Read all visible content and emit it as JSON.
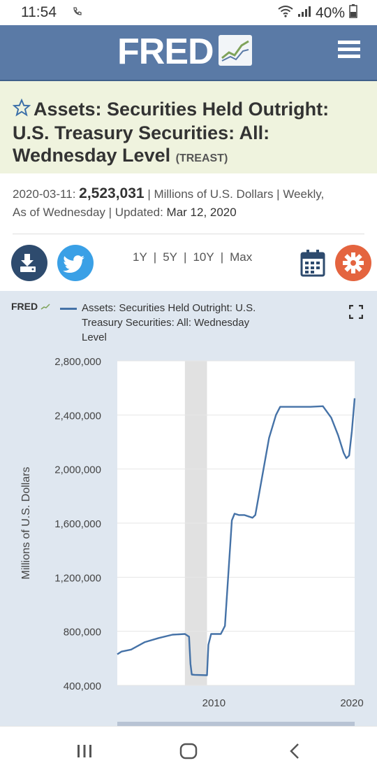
{
  "status": {
    "time": "11:54",
    "battery": "40%"
  },
  "header": {
    "logo_text": "FRED"
  },
  "series": {
    "title": "Assets: Securities Held Outright: U.S. Treasury Securities: All: Wednesday Level",
    "code": "(TREAST)",
    "date": "2020-03-11:",
    "value": "2,523,031",
    "meta_line1": "| Millions of U.S. Dollars | Weekly,",
    "meta_line2a": "As of Wednesday | Updated:",
    "updated": "Mar 12, 2020"
  },
  "ranges": [
    "1Y",
    "5Y",
    "10Y",
    "Max"
  ],
  "chart_logo": "FRED",
  "chart_data": {
    "type": "line",
    "title": "",
    "xlabel": "",
    "ylabel": "Millions of U.S. Dollars",
    "ylim": [
      400000,
      2800000
    ],
    "xlim": [
      2003.0,
      2020.2
    ],
    "yticks": [
      400000,
      800000,
      1200000,
      1600000,
      2000000,
      2400000,
      2800000
    ],
    "yticklabels": [
      "400,000",
      "800,000",
      "1,200,000",
      "1,600,000",
      "2,000,000",
      "2,400,000",
      "2,800,000"
    ],
    "xticks": [
      2010,
      2020
    ],
    "xticklabels": [
      "2010",
      "2020"
    ],
    "grid": true,
    "recession": [
      2007.9,
      2009.5
    ],
    "series": [
      {
        "name": "Assets: Securities Held Outright: U.S. Treasury Securities: All: Wednesday Level",
        "color": "#4572a7",
        "x": [
          2003.0,
          2003.3,
          2004.0,
          2005.0,
          2006.0,
          2007.0,
          2007.9,
          2008.2,
          2008.3,
          2008.4,
          2008.6,
          2009.5,
          2009.6,
          2009.8,
          2010.0,
          2010.5,
          2010.8,
          2011.3,
          2011.5,
          2011.8,
          2012.2,
          2012.8,
          2013.0,
          2014.0,
          2014.5,
          2014.8,
          2015.0,
          2016.0,
          2017.0,
          2017.9,
          2018.5,
          2019.0,
          2019.4,
          2019.6,
          2019.8,
          2020.0,
          2020.2
        ],
        "values": [
          630000,
          650000,
          665000,
          720000,
          750000,
          775000,
          780000,
          760000,
          560000,
          480000,
          478000,
          475000,
          700000,
          780000,
          780000,
          780000,
          840000,
          1620000,
          1670000,
          1660000,
          1660000,
          1640000,
          1660000,
          2230000,
          2400000,
          2460000,
          2460000,
          2460000,
          2460000,
          2465000,
          2380000,
          2250000,
          2120000,
          2080000,
          2100000,
          2280000,
          2523031
        ]
      }
    ]
  }
}
